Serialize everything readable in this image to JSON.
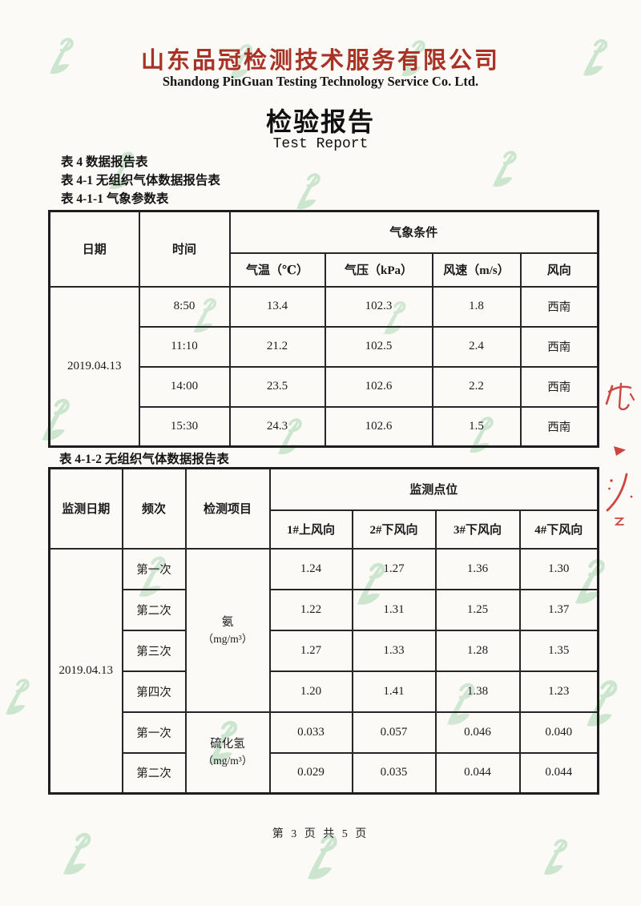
{
  "page": {
    "company_name_cn": "山东品冠检测技术服务有限公司",
    "company_name_en": "Shandong PinGuan Testing Technology Service Co. Ltd.",
    "report_title_cn": "检验报告",
    "report_title_en": "Test Report",
    "page_footer": "第 3 页 共 5 页",
    "colors": {
      "company_red": "#a93226",
      "watermark_green": "#9fd2a8",
      "stamp_red": "#c5261f",
      "ink_black": "#1b1b1b",
      "paper_white": "#fbfaf7"
    }
  },
  "captions": {
    "line1": "表 4 数据报告表",
    "line2": "表 4-1 无组织气体数据报告表",
    "line3": "表 4-1-1 气象参数表",
    "table2_caption": "表 4-1-2 无组织气体数据报告表"
  },
  "weather_table": {
    "headers": {
      "date": "日期",
      "time": "时间",
      "group": "气象条件",
      "col_temp": "气温（℃）",
      "col_pressure": "气压（kPa）",
      "col_wind_speed": "风速（m/s）",
      "col_wind_dir": "风向"
    },
    "date": "2019.04.13",
    "rows": [
      {
        "time": "8:50",
        "temp": "13.4",
        "pressure": "102.3",
        "wind_speed": "1.8",
        "wind_dir": "西南"
      },
      {
        "time": "11:10",
        "temp": "21.2",
        "pressure": "102.5",
        "wind_speed": "2.4",
        "wind_dir": "西南"
      },
      {
        "time": "14:00",
        "temp": "23.5",
        "pressure": "102.6",
        "wind_speed": "2.2",
        "wind_dir": "西南"
      },
      {
        "time": "15:30",
        "temp": "24.3",
        "pressure": "102.6",
        "wind_speed": "1.5",
        "wind_dir": "西南"
      }
    ]
  },
  "gas_table": {
    "headers": {
      "date": "监测日期",
      "frequency": "频次",
      "item": "检测项目",
      "group": "监测点位",
      "col_1": "1#上风向",
      "col_2": "2#下风向",
      "col_3": "3#下风向",
      "col_4": "4#下风向"
    },
    "date": "2019.04.13",
    "ammonia": {
      "name": "氨",
      "unit": "（mg/m³）",
      "rows": [
        {
          "freq": "第一次",
          "v1": "1.24",
          "v2": "1.27",
          "v3": "1.36",
          "v4": "1.30"
        },
        {
          "freq": "第二次",
          "v1": "1.22",
          "v2": "1.31",
          "v3": "1.25",
          "v4": "1.37"
        },
        {
          "freq": "第三次",
          "v1": "1.27",
          "v2": "1.33",
          "v3": "1.28",
          "v4": "1.35"
        },
        {
          "freq": "第四次",
          "v1": "1.20",
          "v2": "1.41",
          "v3": "1.38",
          "v4": "1.23"
        }
      ]
    },
    "h2s": {
      "name": "硫化氢",
      "unit": "（mg/m³）",
      "rows": [
        {
          "freq": "第一次",
          "v1": "0.033",
          "v2": "0.057",
          "v3": "0.046",
          "v4": "0.040"
        },
        {
          "freq": "第二次",
          "v1": "0.029",
          "v2": "0.035",
          "v3": "0.044",
          "v4": "0.044"
        }
      ]
    }
  }
}
